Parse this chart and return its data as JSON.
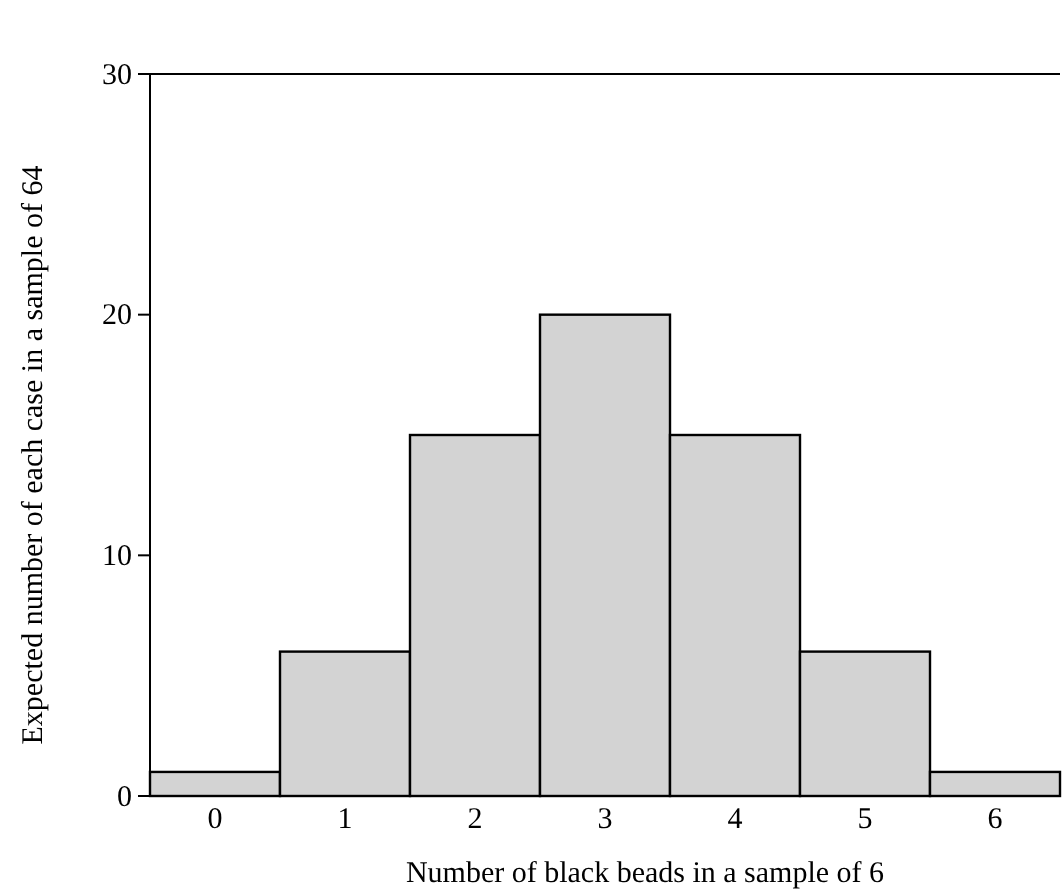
{
  "chart_data": {
    "type": "bar",
    "xlabel": "Number of black beads in a sample of 6",
    "ylabel": "Expected number of each case in a sample of 64",
    "categories": [
      "0",
      "1",
      "2",
      "3",
      "4",
      "5",
      "6"
    ],
    "values": [
      1,
      6,
      15,
      20,
      15,
      6,
      1
    ],
    "color": "#d3d3d3",
    "ylim": [
      0,
      30
    ],
    "yticks": [
      0,
      10,
      20,
      30
    ],
    "grid": false
  }
}
